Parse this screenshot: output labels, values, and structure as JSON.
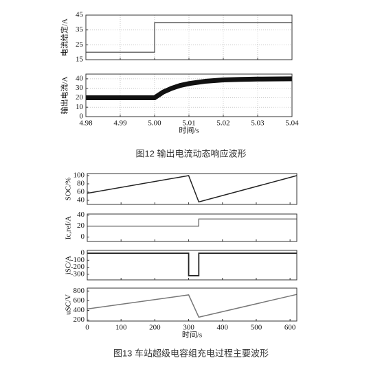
{
  "chart_data": [
    {
      "type": "line",
      "ylabel": "电流给定/A",
      "xlim": [
        4.98,
        5.04
      ],
      "ylim": [
        15,
        45
      ],
      "yticks": [
        15,
        25,
        35,
        45
      ],
      "grid": true,
      "x": [
        4.98,
        5.0,
        5.0,
        5.04
      ],
      "series": [
        {
          "color": "#222222",
          "linewidth": 1,
          "values": [
            20,
            20,
            40,
            40
          ]
        }
      ]
    },
    {
      "type": "line",
      "ylabel": "输出电流/A",
      "xlabel": "时间/s",
      "caption": "图12 输出电流动态响应波形",
      "xlim": [
        4.98,
        5.04
      ],
      "ylim": [
        0,
        45
      ],
      "yticks": [
        0,
        10,
        20,
        30,
        40
      ],
      "grid": true,
      "xticks": [
        4.98,
        4.99,
        {
          "value": 5,
          "label": "5.00"
        },
        5.01,
        5.02,
        5.03,
        5.04
      ],
      "x": [
        4.98,
        5.0,
        5.0025,
        5.005,
        5.0075,
        5.01,
        5.015,
        5.02,
        5.025,
        5.03,
        5.04
      ],
      "series": [
        {
          "color": "#111111",
          "linewidth": 7,
          "values": [
            20,
            20,
            26,
            30,
            33,
            35,
            37.5,
            38.8,
            39.4,
            39.7,
            40
          ]
        }
      ]
    },
    {
      "type": "line",
      "ylabel": "SOC/%",
      "xlim": [
        0,
        620
      ],
      "ylim": [
        30,
        105
      ],
      "yticks": [
        40,
        60,
        80,
        100
      ],
      "grid": false,
      "x": [
        0,
        300,
        330,
        620
      ],
      "series": [
        {
          "color": "#222222",
          "linewidth": 1.5,
          "values": [
            57,
            100,
            36,
            100
          ]
        }
      ]
    },
    {
      "type": "line",
      "ylabel": "Ic,ref/A",
      "xlim": [
        0,
        620
      ],
      "ylim": [
        -8,
        42
      ],
      "yticks": [
        0,
        20,
        40
      ],
      "grid": false,
      "x": [
        0,
        330,
        330,
        620
      ],
      "series": [
        {
          "color": "#555555",
          "linewidth": 1.2,
          "values": [
            20,
            20,
            33,
            33
          ]
        }
      ]
    },
    {
      "type": "line",
      "ylabel": "iSC/A",
      "xlim": [
        0,
        620
      ],
      "ylim": [
        -380,
        40
      ],
      "yticks": [
        -300,
        -200,
        -100,
        0
      ],
      "grid": false,
      "x": [
        0,
        300,
        300,
        330,
        330,
        620
      ],
      "series": [
        {
          "color": "#222222",
          "linewidth": 1.8,
          "values": [
            0,
            0,
            -320,
            -320,
            0,
            0
          ]
        }
      ]
    },
    {
      "type": "line",
      "ylabel": "uSC/V",
      "xlabel": "时间/s",
      "caption": "图13 车站超级电容组充电过程主要波形",
      "xlim": [
        0,
        620
      ],
      "ylim": [
        180,
        860
      ],
      "yticks": [
        200,
        400,
        600,
        800
      ],
      "grid": false,
      "xticks": [
        0,
        100,
        200,
        300,
        400,
        500,
        600
      ],
      "x": [
        0,
        300,
        330,
        620
      ],
      "series": [
        {
          "color": "#777777",
          "linewidth": 1.5,
          "values": [
            430,
            720,
            260,
            730
          ]
        }
      ]
    }
  ]
}
